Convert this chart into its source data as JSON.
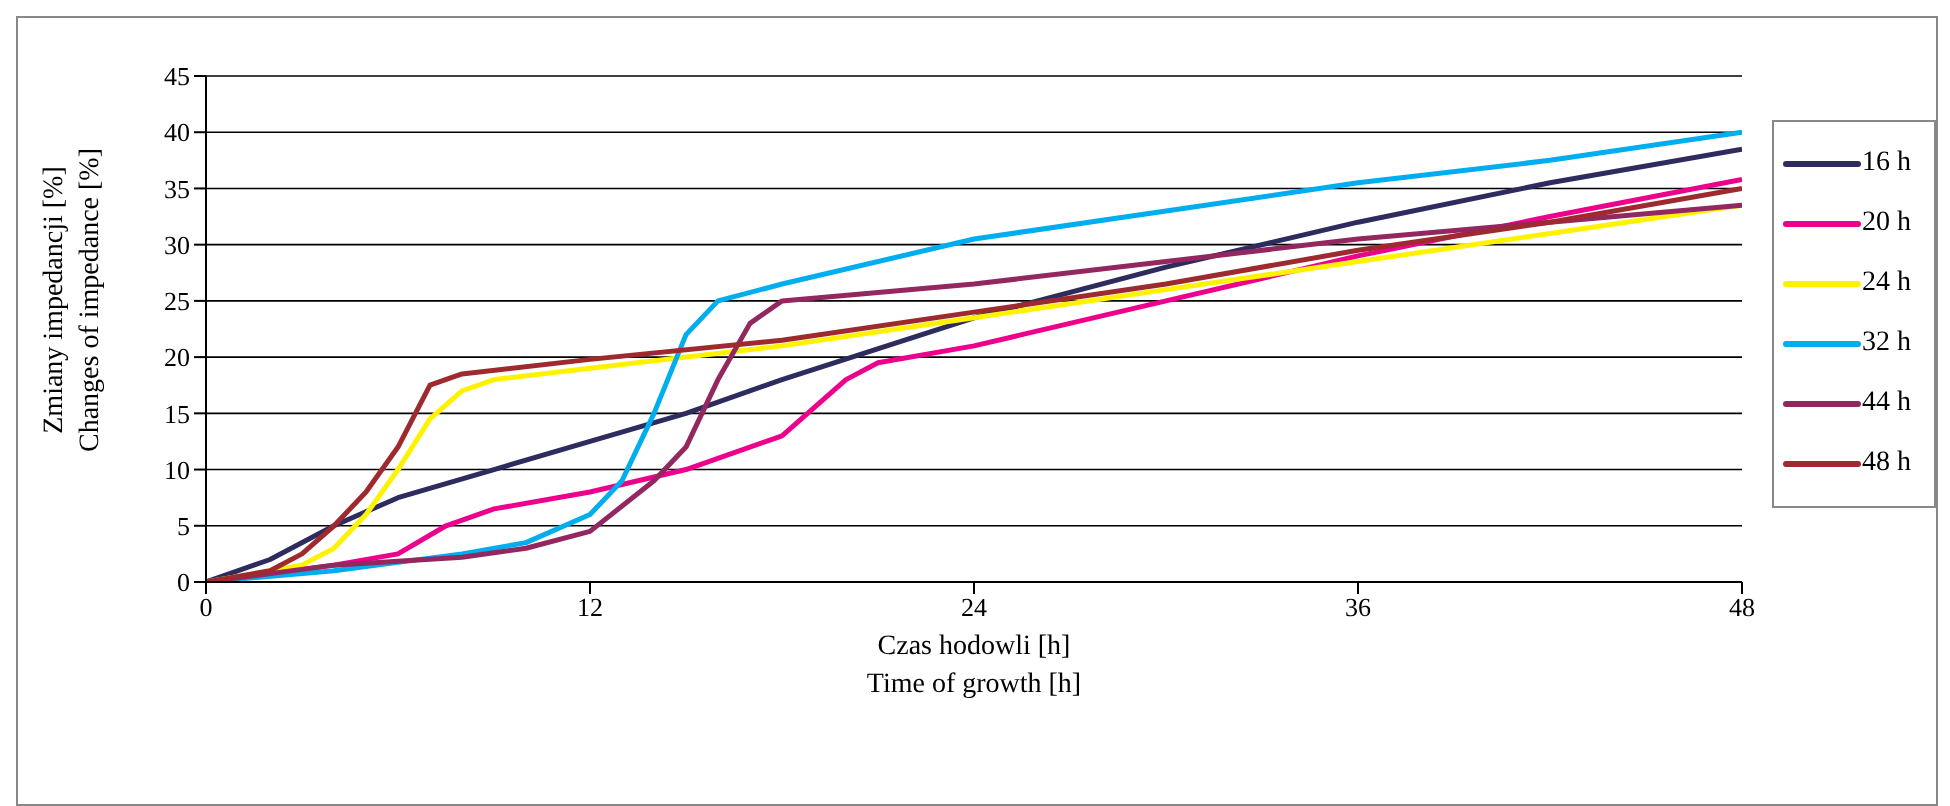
{
  "chart_data": {
    "type": "line",
    "xlabel": "Czas hodowli [h]\nTime of growth [h]",
    "ylabel": "Zmiany impedancji [%]\nChanges of impedance [%]",
    "xlim": [
      0,
      48
    ],
    "xticks": [
      0,
      12,
      24,
      36,
      48
    ],
    "ylim": [
      0,
      45
    ],
    "yticks": [
      0,
      5,
      10,
      15,
      20,
      25,
      30,
      35,
      40,
      45
    ],
    "grid": "y",
    "legend": "right",
    "marker": "none",
    "line_style": "solid",
    "series": [
      {
        "name": "16 h",
        "color": "#2e2b5f",
        "x": [
          0,
          2,
          4,
          6,
          9,
          12,
          15,
          18,
          24,
          30,
          36,
          42,
          48
        ],
        "values": [
          0,
          2,
          5,
          7.5,
          10,
          12.5,
          15,
          18,
          23.5,
          28,
          32,
          35.5,
          38.5
        ]
      },
      {
        "name": "20 h",
        "color": "#ec008c",
        "x": [
          0,
          4,
          6,
          7.5,
          9,
          12,
          15,
          18,
          20,
          21,
          24,
          30,
          36,
          42,
          48
        ],
        "values": [
          0,
          1.5,
          2.5,
          5,
          6.5,
          8,
          10,
          13,
          18,
          19.5,
          21,
          25,
          29,
          32.5,
          35.8
        ]
      },
      {
        "name": "24 h",
        "color": "#fff200",
        "x": [
          0,
          3,
          4,
          5,
          6,
          7,
          8,
          9,
          12,
          18,
          24,
          30,
          36,
          42,
          48
        ],
        "values": [
          0,
          1.5,
          3,
          6,
          10,
          14.5,
          17,
          18,
          19,
          21,
          23.5,
          26,
          28.5,
          31,
          33.5
        ]
      },
      {
        "name": "32 h",
        "color": "#00aeef",
        "x": [
          0,
          4,
          8,
          10,
          12,
          13,
          14,
          15,
          16,
          18,
          24,
          30,
          36,
          42,
          48
        ],
        "values": [
          0,
          1,
          2.5,
          3.5,
          6,
          9,
          15,
          22,
          25,
          26.5,
          30.5,
          33,
          35.5,
          37.5,
          40
        ]
      },
      {
        "name": "44 h",
        "color": "#93275f",
        "x": [
          0,
          4,
          8,
          10,
          12,
          14,
          15,
          16,
          17,
          18,
          24,
          30,
          36,
          42,
          48
        ],
        "values": [
          0,
          1.5,
          2.2,
          3,
          4.5,
          9,
          12,
          18,
          23,
          25,
          26.5,
          28.5,
          30.5,
          32,
          33.5
        ]
      },
      {
        "name": "48 h",
        "color": "#9e2a2f",
        "x": [
          0,
          2,
          3,
          4,
          5,
          6,
          7,
          8,
          12,
          18,
          24,
          30,
          36,
          42,
          48
        ],
        "values": [
          0,
          1,
          2.5,
          5,
          8,
          12,
          17.5,
          18.5,
          19.8,
          21.5,
          24,
          26.5,
          29.5,
          32,
          35
        ]
      }
    ]
  }
}
